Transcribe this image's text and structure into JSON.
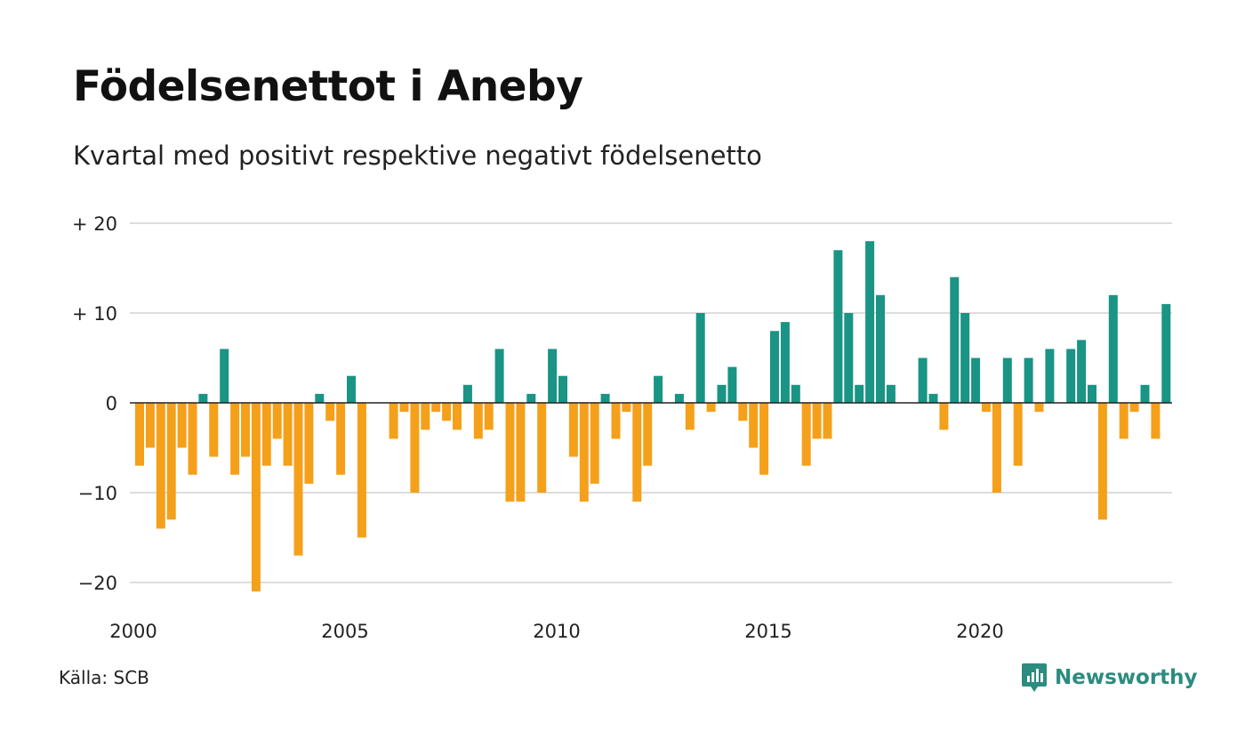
{
  "title": "Födelsenettot i Aneby",
  "subtitle": "Kvartal med positivt respektive negativt födelsenetto",
  "source": {
    "label": "Källa:",
    "value": "SCB"
  },
  "brand": {
    "name": "Newsworthy",
    "icon": "newsworthy-logo-icon",
    "color": "#2b8c7f"
  },
  "colors": {
    "positive": "#1a9484",
    "negative": "#f5a01a",
    "grid": "#dddddd",
    "zero_line": "#222222"
  },
  "chart_data": {
    "type": "bar",
    "title": "Födelsenettot i Aneby",
    "subtitle": "Kvartal med positivt respektive negativt födelsenetto",
    "xlabel": "",
    "ylabel": "",
    "ylim": [
      -23,
      20
    ],
    "grid": true,
    "legend": "none",
    "x_ticks": [
      {
        "value": 2000,
        "label": "2000"
      },
      {
        "value": 2005,
        "label": "2005"
      },
      {
        "value": 2010,
        "label": "2010"
      },
      {
        "value": 2015,
        "label": "2015"
      },
      {
        "value": 2020,
        "label": "2020"
      }
    ],
    "y_ticks": [
      {
        "value": 20,
        "label": "+ 20"
      },
      {
        "value": 10,
        "label": "+ 10"
      },
      {
        "value": 0,
        "label": "0"
      },
      {
        "value": -10,
        "label": "−10"
      },
      {
        "value": -20,
        "label": "−20"
      }
    ],
    "quarters": [
      {
        "year": 2000,
        "q": 1,
        "value": -7
      },
      {
        "year": 2000,
        "q": 2,
        "value": -5
      },
      {
        "year": 2000,
        "q": 3,
        "value": -14
      },
      {
        "year": 2000,
        "q": 4,
        "value": -13
      },
      {
        "year": 2001,
        "q": 1,
        "value": -5
      },
      {
        "year": 2001,
        "q": 2,
        "value": -8
      },
      {
        "year": 2001,
        "q": 3,
        "value": 1
      },
      {
        "year": 2001,
        "q": 4,
        "value": -6
      },
      {
        "year": 2002,
        "q": 1,
        "value": 6
      },
      {
        "year": 2002,
        "q": 2,
        "value": -8
      },
      {
        "year": 2002,
        "q": 3,
        "value": -6
      },
      {
        "year": 2002,
        "q": 4,
        "value": -21
      },
      {
        "year": 2003,
        "q": 1,
        "value": -7
      },
      {
        "year": 2003,
        "q": 2,
        "value": -4
      },
      {
        "year": 2003,
        "q": 3,
        "value": -7
      },
      {
        "year": 2003,
        "q": 4,
        "value": -17
      },
      {
        "year": 2004,
        "q": 1,
        "value": -9
      },
      {
        "year": 2004,
        "q": 2,
        "value": 1
      },
      {
        "year": 2004,
        "q": 3,
        "value": -2
      },
      {
        "year": 2004,
        "q": 4,
        "value": -8
      },
      {
        "year": 2005,
        "q": 1,
        "value": 3
      },
      {
        "year": 2005,
        "q": 2,
        "value": -15
      },
      {
        "year": 2005,
        "q": 3,
        "value": 0
      },
      {
        "year": 2005,
        "q": 4,
        "value": 0
      },
      {
        "year": 2006,
        "q": 1,
        "value": -4
      },
      {
        "year": 2006,
        "q": 2,
        "value": -1
      },
      {
        "year": 2006,
        "q": 3,
        "value": -10
      },
      {
        "year": 2006,
        "q": 4,
        "value": -3
      },
      {
        "year": 2007,
        "q": 1,
        "value": -1
      },
      {
        "year": 2007,
        "q": 2,
        "value": -2
      },
      {
        "year": 2007,
        "q": 3,
        "value": -3
      },
      {
        "year": 2007,
        "q": 4,
        "value": 2
      },
      {
        "year": 2008,
        "q": 1,
        "value": -4
      },
      {
        "year": 2008,
        "q": 2,
        "value": -3
      },
      {
        "year": 2008,
        "q": 3,
        "value": 6
      },
      {
        "year": 2008,
        "q": 4,
        "value": -11
      },
      {
        "year": 2009,
        "q": 1,
        "value": -11
      },
      {
        "year": 2009,
        "q": 2,
        "value": 1
      },
      {
        "year": 2009,
        "q": 3,
        "value": -10
      },
      {
        "year": 2009,
        "q": 4,
        "value": 6
      },
      {
        "year": 2010,
        "q": 1,
        "value": 3
      },
      {
        "year": 2010,
        "q": 2,
        "value": -6
      },
      {
        "year": 2010,
        "q": 3,
        "value": -11
      },
      {
        "year": 2010,
        "q": 4,
        "value": -9
      },
      {
        "year": 2011,
        "q": 1,
        "value": 1
      },
      {
        "year": 2011,
        "q": 2,
        "value": -4
      },
      {
        "year": 2011,
        "q": 3,
        "value": -1
      },
      {
        "year": 2011,
        "q": 4,
        "value": -11
      },
      {
        "year": 2012,
        "q": 1,
        "value": -7
      },
      {
        "year": 2012,
        "q": 2,
        "value": 3
      },
      {
        "year": 2012,
        "q": 3,
        "value": 0
      },
      {
        "year": 2012,
        "q": 4,
        "value": 1
      },
      {
        "year": 2013,
        "q": 1,
        "value": -3
      },
      {
        "year": 2013,
        "q": 2,
        "value": 10
      },
      {
        "year": 2013,
        "q": 3,
        "value": -1
      },
      {
        "year": 2013,
        "q": 4,
        "value": 2
      },
      {
        "year": 2014,
        "q": 1,
        "value": 4
      },
      {
        "year": 2014,
        "q": 2,
        "value": -2
      },
      {
        "year": 2014,
        "q": 3,
        "value": -5
      },
      {
        "year": 2014,
        "q": 4,
        "value": -8
      },
      {
        "year": 2015,
        "q": 1,
        "value": 8
      },
      {
        "year": 2015,
        "q": 2,
        "value": 9
      },
      {
        "year": 2015,
        "q": 3,
        "value": 2
      },
      {
        "year": 2015,
        "q": 4,
        "value": -7
      },
      {
        "year": 2016,
        "q": 1,
        "value": -4
      },
      {
        "year": 2016,
        "q": 2,
        "value": -4
      },
      {
        "year": 2016,
        "q": 3,
        "value": 17
      },
      {
        "year": 2016,
        "q": 4,
        "value": 10
      },
      {
        "year": 2017,
        "q": 1,
        "value": 2
      },
      {
        "year": 2017,
        "q": 2,
        "value": 18
      },
      {
        "year": 2017,
        "q": 3,
        "value": 12
      },
      {
        "year": 2017,
        "q": 4,
        "value": 2
      },
      {
        "year": 2018,
        "q": 1,
        "value": 0
      },
      {
        "year": 2018,
        "q": 2,
        "value": 0
      },
      {
        "year": 2018,
        "q": 3,
        "value": 5
      },
      {
        "year": 2018,
        "q": 4,
        "value": 1
      },
      {
        "year": 2019,
        "q": 1,
        "value": -3
      },
      {
        "year": 2019,
        "q": 2,
        "value": 14
      },
      {
        "year": 2019,
        "q": 3,
        "value": 10
      },
      {
        "year": 2019,
        "q": 4,
        "value": 5
      },
      {
        "year": 2020,
        "q": 1,
        "value": -1
      },
      {
        "year": 2020,
        "q": 2,
        "value": -10
      },
      {
        "year": 2020,
        "q": 3,
        "value": 5
      },
      {
        "year": 2020,
        "q": 4,
        "value": -7
      },
      {
        "year": 2021,
        "q": 1,
        "value": 5
      },
      {
        "year": 2021,
        "q": 2,
        "value": -1
      },
      {
        "year": 2021,
        "q": 3,
        "value": 6
      },
      {
        "year": 2021,
        "q": 4,
        "value": 0
      },
      {
        "year": 2022,
        "q": 1,
        "value": 6
      },
      {
        "year": 2022,
        "q": 2,
        "value": 7
      },
      {
        "year": 2022,
        "q": 3,
        "value": 2
      },
      {
        "year": 2022,
        "q": 4,
        "value": -13
      },
      {
        "year": 2023,
        "q": 1,
        "value": 12
      },
      {
        "year": 2023,
        "q": 2,
        "value": -4
      },
      {
        "year": 2023,
        "q": 3,
        "value": -1
      },
      {
        "year": 2023,
        "q": 4,
        "value": 2
      },
      {
        "year": 2024,
        "q": 1,
        "value": -4
      },
      {
        "year": 2024,
        "q": 2,
        "value": 11
      }
    ]
  }
}
